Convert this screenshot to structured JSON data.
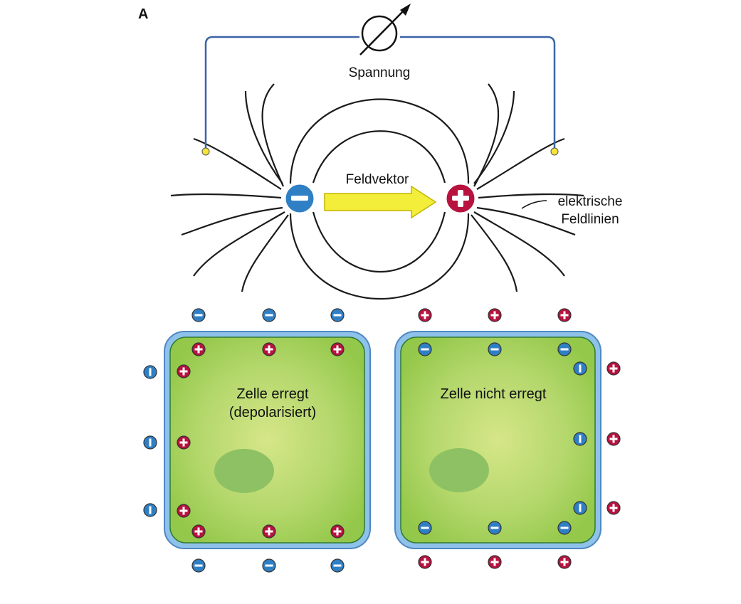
{
  "panel_label": "A",
  "labels": {
    "voltage": "Spannung",
    "field_vector": "Feldvektor",
    "field_lines_1": "elektrische",
    "field_lines_2": "Feldlinien"
  },
  "cells": {
    "excited_1": "Zelle erregt",
    "excited_2": "(depolarisiert)",
    "resting": "Zelle nicht erregt"
  },
  "symbols": {
    "minus": "−",
    "plus": "+"
  },
  "colors": {
    "negative": "#2f7fc5",
    "positive": "#b8123f",
    "wire": "#3b64a8",
    "arrow": "#f2ee3a",
    "cytoplasm": "#a8d25a",
    "membrane": "#8fc2ea",
    "nucleus": "#8ec163"
  },
  "icons": [
    "voltmeter-icon",
    "negative-ion-icon",
    "positive-ion-icon"
  ]
}
